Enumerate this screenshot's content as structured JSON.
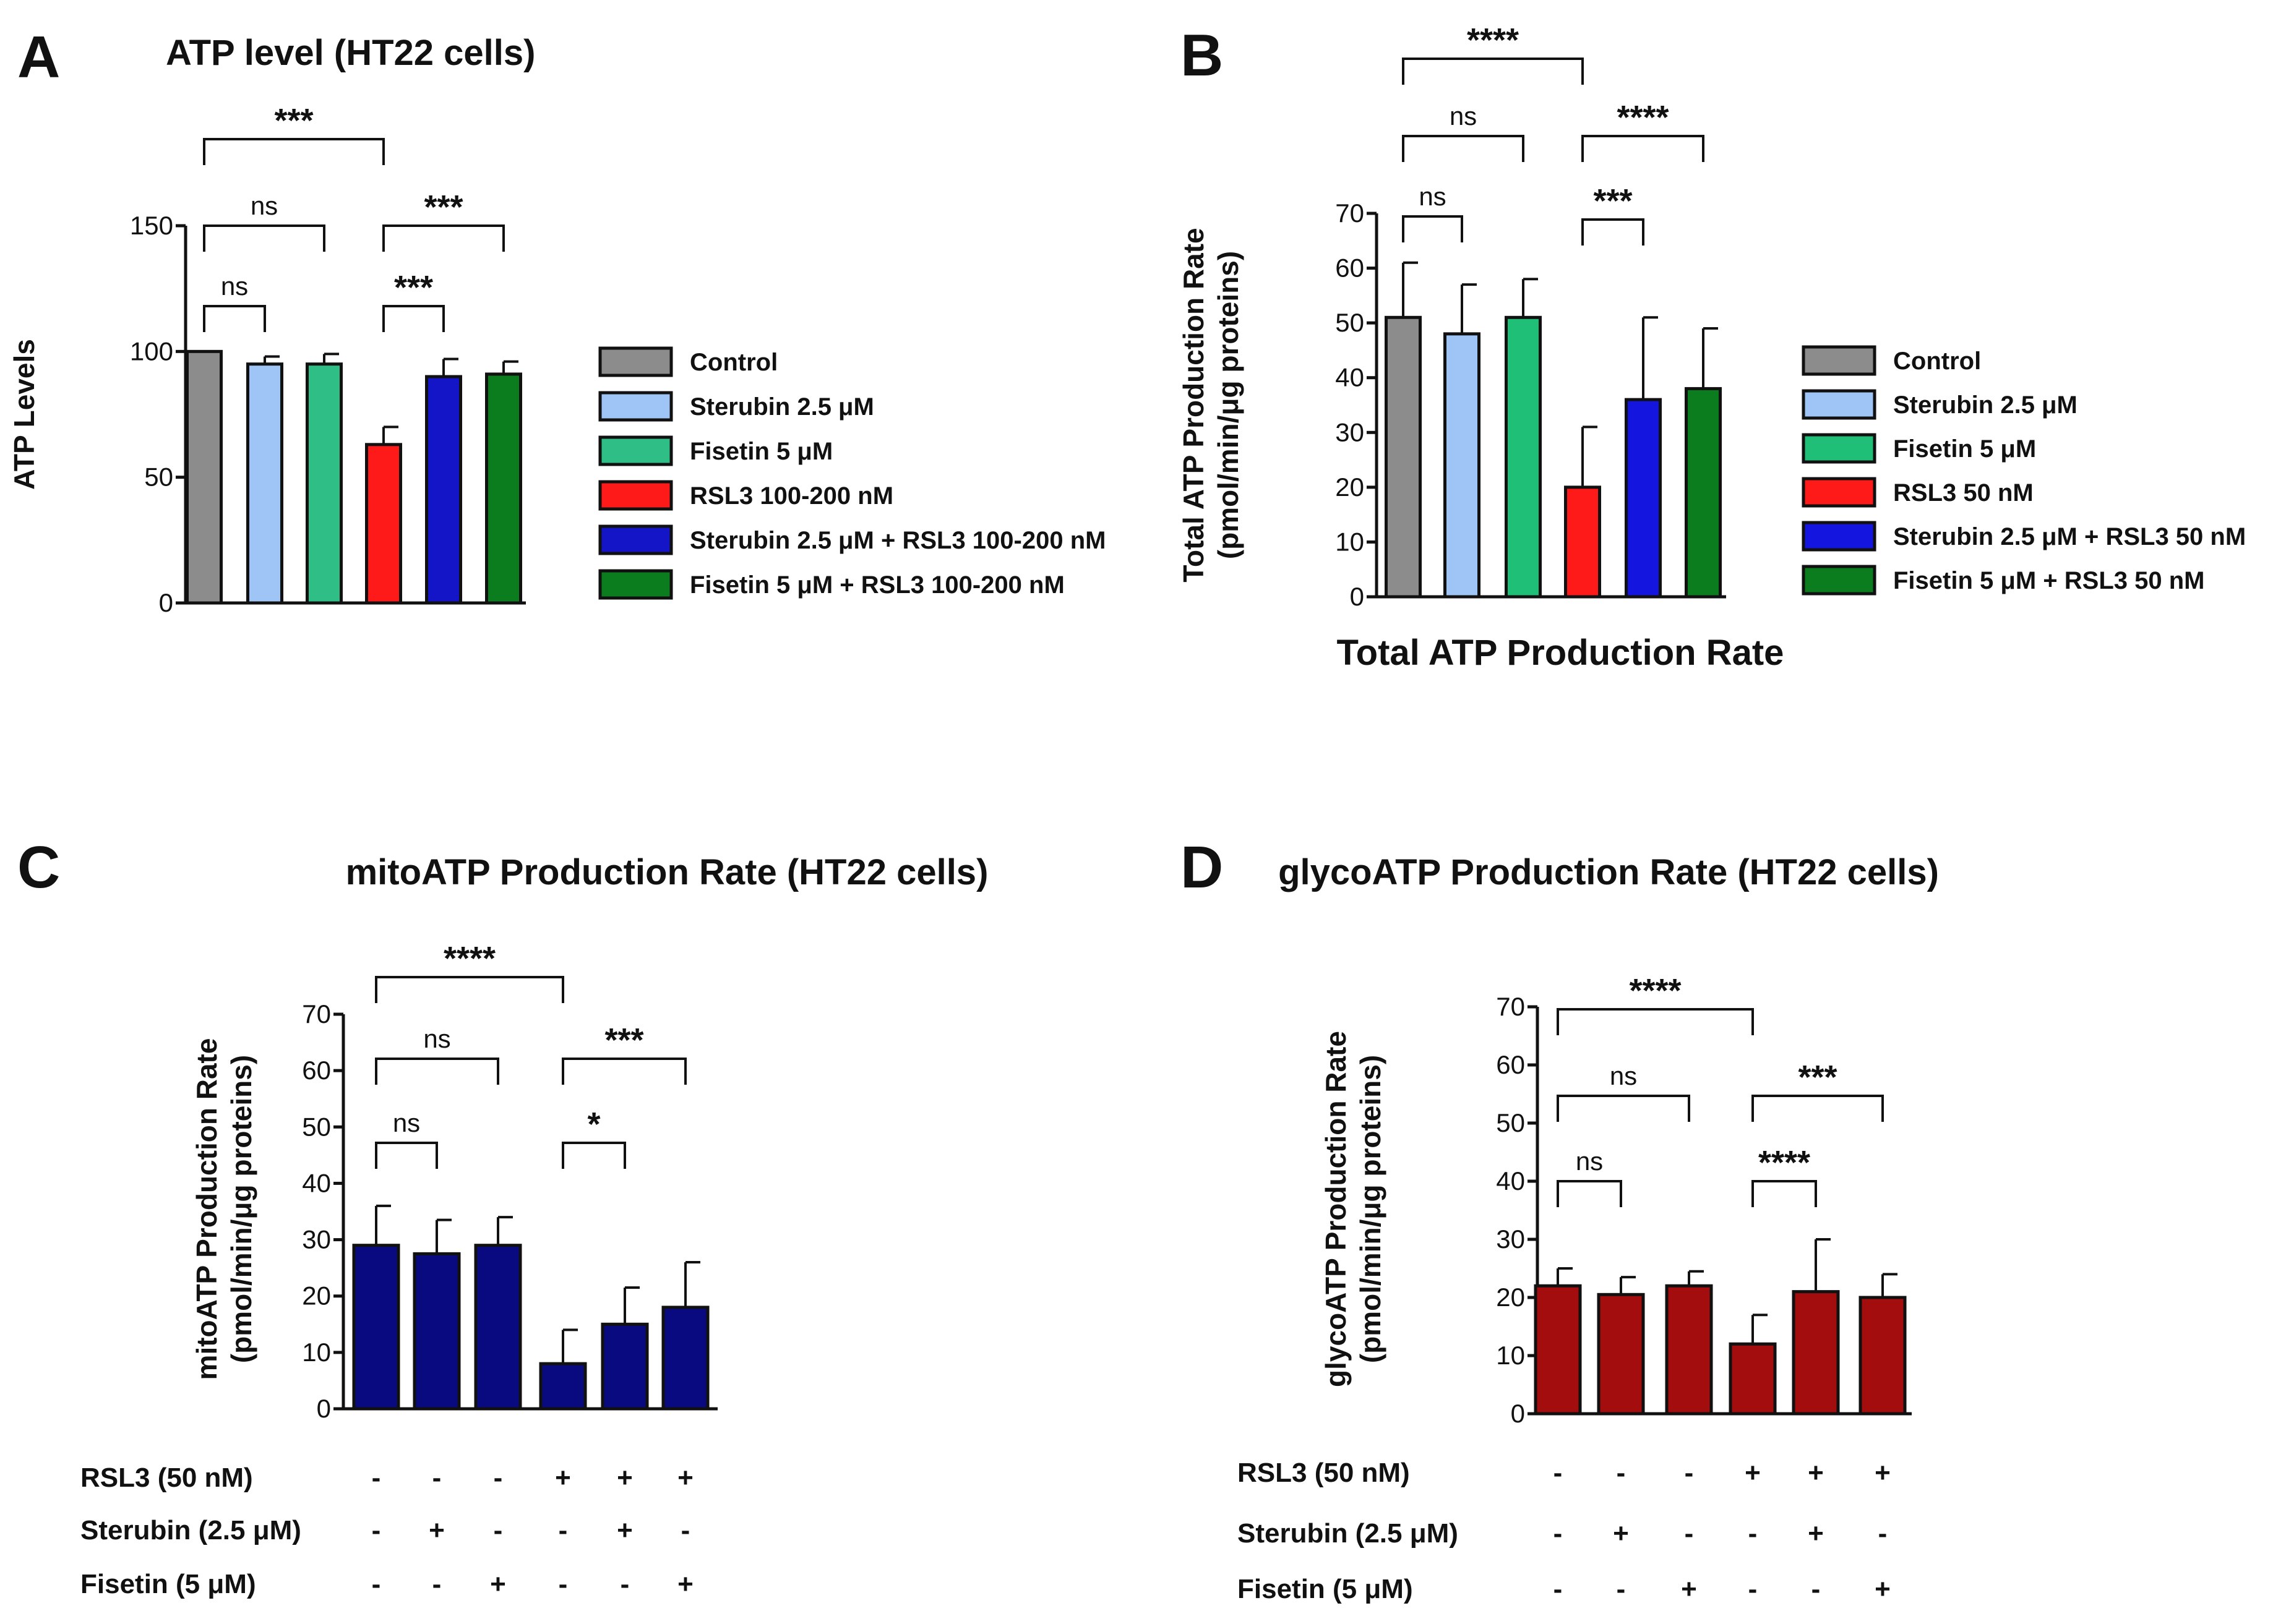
{
  "chart_data": [
    {
      "id": "A",
      "type": "bar",
      "panel_label": "A",
      "title": "ATP level (HT22 cells)",
      "xlabel": "",
      "ylabel": "ATP Levels",
      "ylim": [
        0,
        150
      ],
      "yticks": [
        "0",
        "50",
        "100",
        "150"
      ],
      "categories": [
        "Control",
        "Sterubin 2.5 μM",
        "Fisetin 5 μM",
        "RSL3 100-200 nM",
        "Sterubin 2.5 μM + RSL3 100-200 nM",
        "Fisetin 5 μM + RSL3 100-200 nM"
      ],
      "values": [
        100,
        95,
        95,
        63,
        90,
        91
      ],
      "errors": [
        0,
        3,
        4,
        7,
        7,
        5
      ],
      "colors": [
        "#8c8c8c",
        "#9ec5f5",
        "#2fbf86",
        "#ff1a1a",
        "#1515c8",
        "#0b7d1f"
      ],
      "legend": [
        "Control",
        "Sterubin 2.5 μM",
        "Fisetin 5 μM",
        "RSL3 100-200 nM",
        "Sterubin 2.5 μM + RSL3 100-200 nM",
        "Fisetin 5 μM + RSL3 100-200 nM"
      ],
      "comparisons": [
        {
          "from": 0,
          "to": 1,
          "label": "ns"
        },
        {
          "from": 0,
          "to": 2,
          "label": "ns"
        },
        {
          "from": 0,
          "to": 3,
          "label": "***"
        },
        {
          "from": 3,
          "to": 4,
          "label": "***"
        },
        {
          "from": 3,
          "to": 5,
          "label": "***"
        }
      ]
    },
    {
      "id": "B",
      "type": "bar",
      "panel_label": "B",
      "title": "",
      "xlabel": "Total ATP Production Rate",
      "ylabel_lines": [
        "Total ATP Production Rate",
        "(pmol/min/μg proteins)"
      ],
      "ylim": [
        0,
        70
      ],
      "yticks": [
        "0",
        "10",
        "20",
        "30",
        "40",
        "50",
        "60",
        "70"
      ],
      "categories": [
        "Control",
        "Sterubin 2.5 μM",
        "Fisetin 5 μM",
        "RSL3 50 nM",
        "Sterubin 2.5 μM + RSL3 50 nM",
        "Fisetin 5 μM + RSL3 50 nM"
      ],
      "values": [
        51,
        48,
        51,
        20,
        36,
        38
      ],
      "errors": [
        10,
        9,
        7,
        11,
        15,
        11
      ],
      "colors": [
        "#8c8c8c",
        "#9ec5f5",
        "#1fbf78",
        "#ff1a1a",
        "#1515e0",
        "#0b7d1f"
      ],
      "legend": [
        "Control",
        "Sterubin 2.5 μM",
        "Fisetin 5 μM",
        "RSL3 50 nM",
        "Sterubin 2.5 μM + RSL3 50 nM",
        "Fisetin 5 μM + RSL3 50 nM"
      ],
      "comparisons": [
        {
          "from": 0,
          "to": 1,
          "label": "ns"
        },
        {
          "from": 0,
          "to": 2,
          "label": "ns"
        },
        {
          "from": 0,
          "to": 3,
          "label": "****"
        },
        {
          "from": 3,
          "to": 4,
          "label": "***"
        },
        {
          "from": 3,
          "to": 5,
          "label": "****"
        }
      ]
    },
    {
      "id": "C",
      "type": "bar",
      "panel_label": "C",
      "title": "mitoATP Production Rate (HT22 cells)",
      "xlabel": "",
      "ylabel_lines": [
        "mitoATP Production Rate",
        "(pmol/min/μg proteins)"
      ],
      "ylim": [
        0,
        70
      ],
      "yticks": [
        "0",
        "10",
        "20",
        "30",
        "40",
        "50",
        "60",
        "70"
      ],
      "values": [
        29,
        27.5,
        29,
        8,
        15,
        18
      ],
      "errors": [
        7,
        6,
        5,
        6,
        6.5,
        8
      ],
      "bar_color": "#0a0a80",
      "comparisons": [
        {
          "from": 0,
          "to": 1,
          "label": "ns"
        },
        {
          "from": 0,
          "to": 2,
          "label": "ns"
        },
        {
          "from": 0,
          "to": 3,
          "label": "****"
        },
        {
          "from": 3,
          "to": 4,
          "label": "*"
        },
        {
          "from": 3,
          "to": 5,
          "label": "***"
        }
      ],
      "treatment_rows": [
        {
          "label": "RSL3 (50 nM)",
          "signs": [
            "-",
            "-",
            "-",
            "+",
            "+",
            "+"
          ]
        },
        {
          "label": "Sterubin (2.5 μM)",
          "signs": [
            "-",
            "+",
            "-",
            "-",
            "+",
            "-"
          ]
        },
        {
          "label": "Fisetin (5 μM)",
          "signs": [
            "-",
            "-",
            "+",
            "-",
            "-",
            "+"
          ]
        }
      ]
    },
    {
      "id": "D",
      "type": "bar",
      "panel_label": "D",
      "title": "glycoATP Production Rate (HT22 cells)",
      "xlabel": "",
      "ylabel_lines": [
        "glycoATP Production Rate",
        "(pmol/min/μg proteins)"
      ],
      "ylim": [
        0,
        70
      ],
      "yticks": [
        "0",
        "10",
        "20",
        "30",
        "40",
        "50",
        "60",
        "70"
      ],
      "values": [
        22,
        20.5,
        22,
        12,
        21,
        20
      ],
      "errors": [
        3,
        3,
        2.5,
        5,
        9,
        4
      ],
      "bar_color": "#a30d0d",
      "comparisons": [
        {
          "from": 0,
          "to": 1,
          "label": "ns"
        },
        {
          "from": 0,
          "to": 2,
          "label": "ns"
        },
        {
          "from": 0,
          "to": 3,
          "label": "****"
        },
        {
          "from": 3,
          "to": 4,
          "label": "****"
        },
        {
          "from": 3,
          "to": 5,
          "label": "***"
        }
      ],
      "treatment_rows": [
        {
          "label": "RSL3 (50 nM)",
          "signs": [
            "-",
            "-",
            "-",
            "+",
            "+",
            "+"
          ]
        },
        {
          "label": "Sterubin (2.5 μM)",
          "signs": [
            "-",
            "+",
            "-",
            "-",
            "+",
            "-"
          ]
        },
        {
          "label": "Fisetin (5 μM)",
          "signs": [
            "-",
            "-",
            "+",
            "-",
            "-",
            "+"
          ]
        }
      ]
    }
  ]
}
